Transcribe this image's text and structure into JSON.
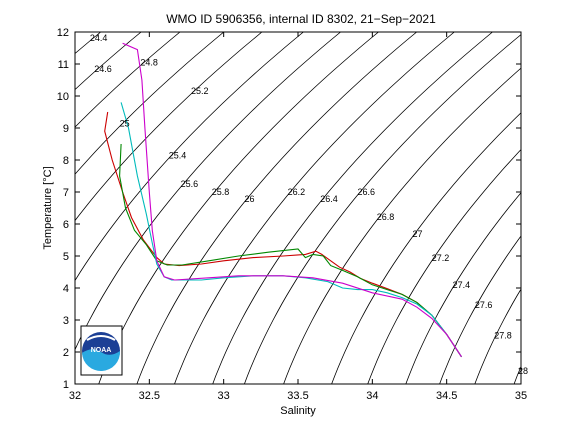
{
  "chart_data": {
    "type": "line",
    "title": "WMO ID 5906356, internal ID 8302, 21−Sep−2021",
    "xlabel": "Salinity",
    "ylabel": "Temperature [°C]",
    "xlim": [
      32,
      35
    ],
    "ylim": [
      1,
      12
    ],
    "xticks": [
      "32",
      "32.5",
      "33",
      "33.5",
      "34",
      "34.5",
      "35"
    ],
    "yticks": [
      "1",
      "2",
      "3",
      "4",
      "5",
      "6",
      "7",
      "8",
      "9",
      "10",
      "11",
      "12"
    ],
    "grid": false,
    "legend": "none",
    "logo_text": "NOAA",
    "density_contours": {
      "color": "#000000",
      "levels": [
        {
          "label": "24.4",
          "s": 32.1,
          "t": 11.72
        },
        {
          "label": "24.6",
          "s": 32.13,
          "t": 10.75
        },
        {
          "label": "24.8",
          "s": 32.44,
          "t": 10.95
        },
        {
          "label": "25",
          "s": 32.3,
          "t": 9.05
        },
        {
          "label": "25.2",
          "s": 32.78,
          "t": 10.06
        },
        {
          "label": "25.4",
          "s": 32.63,
          "t": 8.05
        },
        {
          "label": "25.6",
          "s": 32.71,
          "t": 7.15
        },
        {
          "label": "25.8",
          "s": 32.92,
          "t": 6.9
        },
        {
          "label": "26",
          "s": 33.14,
          "t": 6.69
        },
        {
          "label": "26.2",
          "s": 33.43,
          "t": 6.9
        },
        {
          "label": "26.4",
          "s": 33.65,
          "t": 6.69
        },
        {
          "label": "26.6",
          "s": 33.9,
          "t": 6.9
        },
        {
          "label": "26.8",
          "s": 34.03,
          "t": 6.12
        },
        {
          "label": "27",
          "s": 34.27,
          "t": 5.6
        },
        {
          "label": "27.2",
          "s": 34.4,
          "t": 4.85
        },
        {
          "label": "27.4",
          "s": 34.54,
          "t": 4.0
        },
        {
          "label": "27.6",
          "s": 34.69,
          "t": 3.38
        },
        {
          "label": "27.8",
          "s": 34.82,
          "t": 2.42
        },
        {
          "label": "28",
          "s": 34.98,
          "t": 1.32
        }
      ]
    },
    "series": [
      {
        "color": "#cc0000",
        "points": [
          [
            32.22,
            9.5
          ],
          [
            32.2,
            8.9
          ],
          [
            32.25,
            8.0
          ],
          [
            32.32,
            7.0
          ],
          [
            32.38,
            6.2
          ],
          [
            32.46,
            5.5
          ],
          [
            32.55,
            4.95
          ],
          [
            32.6,
            4.75
          ],
          [
            32.7,
            4.7
          ],
          [
            32.85,
            4.75
          ],
          [
            33.0,
            4.85
          ],
          [
            33.2,
            4.95
          ],
          [
            33.4,
            5.0
          ],
          [
            33.55,
            5.05
          ],
          [
            33.62,
            5.15
          ],
          [
            33.66,
            5.05
          ],
          [
            33.72,
            4.85
          ],
          [
            33.78,
            4.65
          ],
          [
            33.85,
            4.5
          ],
          [
            33.92,
            4.3
          ],
          [
            34.0,
            4.15
          ],
          [
            34.1,
            3.98
          ],
          [
            34.2,
            3.8
          ],
          [
            34.3,
            3.55
          ],
          [
            34.4,
            3.15
          ],
          [
            34.5,
            2.55
          ],
          [
            34.6,
            1.85
          ]
        ]
      },
      {
        "color": "#008800",
        "points": [
          [
            32.31,
            8.5
          ],
          [
            32.3,
            7.5
          ],
          [
            32.34,
            6.5
          ],
          [
            32.4,
            5.8
          ],
          [
            32.48,
            5.35
          ],
          [
            32.55,
            4.85
          ],
          [
            32.62,
            4.72
          ],
          [
            32.72,
            4.72
          ],
          [
            32.9,
            4.85
          ],
          [
            33.1,
            5.0
          ],
          [
            33.3,
            5.12
          ],
          [
            33.5,
            5.22
          ],
          [
            33.55,
            4.95
          ],
          [
            33.6,
            5.05
          ],
          [
            33.67,
            5.0
          ],
          [
            33.72,
            4.7
          ],
          [
            33.8,
            4.55
          ],
          [
            33.9,
            4.35
          ],
          [
            34.0,
            4.1
          ],
          [
            34.1,
            3.95
          ],
          [
            34.2,
            3.8
          ],
          [
            34.3,
            3.55
          ],
          [
            34.4,
            3.15
          ],
          [
            34.5,
            2.55
          ],
          [
            34.6,
            1.85
          ]
        ]
      },
      {
        "color": "#00bbbb",
        "points": [
          [
            32.31,
            9.8
          ],
          [
            32.36,
            9.0
          ],
          [
            32.42,
            7.5
          ],
          [
            32.48,
            6.3
          ],
          [
            32.52,
            5.4
          ],
          [
            32.55,
            4.75
          ],
          [
            32.6,
            4.35
          ],
          [
            32.65,
            4.25
          ],
          [
            32.85,
            4.25
          ],
          [
            33.0,
            4.32
          ],
          [
            33.2,
            4.38
          ],
          [
            33.4,
            4.38
          ],
          [
            33.55,
            4.32
          ],
          [
            33.7,
            4.2
          ],
          [
            33.8,
            4.0
          ],
          [
            33.9,
            3.95
          ],
          [
            34.0,
            3.95
          ],
          [
            34.1,
            3.85
          ],
          [
            34.2,
            3.7
          ],
          [
            34.3,
            3.5
          ],
          [
            34.4,
            3.15
          ],
          [
            34.5,
            2.55
          ],
          [
            34.6,
            1.85
          ]
        ]
      },
      {
        "color": "#cc00cc",
        "points": [
          [
            32.32,
            11.65
          ],
          [
            32.42,
            11.45
          ],
          [
            32.45,
            10.5
          ],
          [
            32.47,
            9.0
          ],
          [
            32.5,
            7.0
          ],
          [
            32.52,
            5.8
          ],
          [
            32.55,
            4.85
          ],
          [
            32.6,
            4.35
          ],
          [
            32.67,
            4.25
          ],
          [
            32.9,
            4.32
          ],
          [
            33.1,
            4.38
          ],
          [
            33.4,
            4.38
          ],
          [
            33.6,
            4.32
          ],
          [
            33.8,
            4.15
          ],
          [
            34.0,
            3.85
          ],
          [
            34.2,
            3.65
          ],
          [
            34.3,
            3.4
          ],
          [
            34.4,
            3.05
          ],
          [
            34.5,
            2.55
          ],
          [
            34.6,
            1.85
          ]
        ]
      }
    ]
  }
}
